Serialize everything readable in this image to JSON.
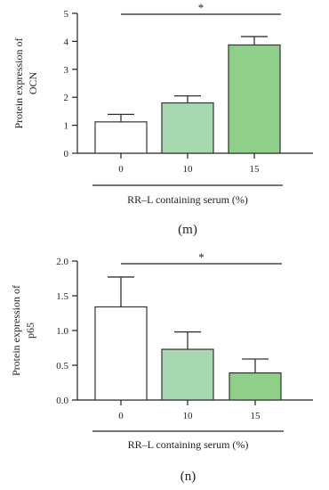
{
  "colors": {
    "axis": "#222222",
    "bar_edge": "#333333",
    "bar_0": "#ffffff",
    "bar_10": "#a7d8b0",
    "bar_15": "#8fcf8a"
  },
  "chart_data": [
    {
      "type": "bar",
      "panel": "(m)",
      "categories": [
        "0",
        "10",
        "15"
      ],
      "values": [
        1.12,
        1.8,
        3.87
      ],
      "errors": [
        0.27,
        0.25,
        0.3
      ],
      "bar_colors": [
        "#ffffff",
        "#a7d8b0",
        "#8fcf8a"
      ],
      "ylabel": [
        "Protein expression of",
        "OCN"
      ],
      "xlabel": "RR–L containing serum (%)",
      "ylim": [
        0,
        5
      ],
      "yticks": [
        0,
        1,
        2,
        3,
        4,
        5
      ],
      "ytick_labels": [
        "0",
        "1",
        "2",
        "3",
        "4",
        "5"
      ],
      "significance": {
        "from": "0",
        "to": "15",
        "label": "*"
      },
      "grid": false
    },
    {
      "type": "bar",
      "panel": "(n)",
      "categories": [
        "0",
        "10",
        "15"
      ],
      "values": [
        1.34,
        0.73,
        0.39
      ],
      "errors": [
        0.43,
        0.25,
        0.2
      ],
      "bar_colors": [
        "#ffffff",
        "#a7d8b0",
        "#8fcf8a"
      ],
      "ylabel": [
        "Protein expression of",
        "p65"
      ],
      "xlabel": "RR–L containing serum (%)",
      "ylim": [
        0,
        2.0
      ],
      "yticks": [
        0,
        0.5,
        1.0,
        1.5,
        2.0
      ],
      "ytick_labels": [
        "0.0",
        "0.5",
        "1.0",
        "1.5",
        "2.0"
      ],
      "significance": {
        "from": "0",
        "to": "15",
        "label": "*"
      },
      "grid": false
    }
  ]
}
